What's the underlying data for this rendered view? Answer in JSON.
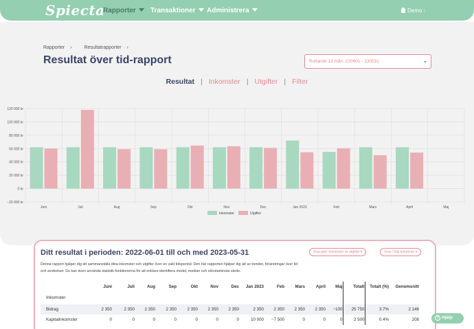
{
  "nav": {
    "logo": "Spiecta",
    "items": [
      {
        "label": "Rapporter",
        "active": true
      },
      {
        "label": "Transaktioner",
        "active": false
      },
      {
        "label": "Administrera",
        "active": false
      }
    ],
    "user": "Demo"
  },
  "breadcrumb": [
    "Rapporter",
    "Resultatrapporter"
  ],
  "page_title": "Resultat över tid-rapport",
  "period_select": "Rullande 12 mån: 220601 - 230531",
  "tabs": [
    {
      "label": "Resultat",
      "active": true
    },
    {
      "label": "Inkomster",
      "active": false
    },
    {
      "label": "Utgifter",
      "active": false
    },
    {
      "label": "Filter",
      "active": false
    }
  ],
  "colors": {
    "income": "#a8d8c0",
    "expense": "#e8b0b4",
    "accent": "#93cfb0",
    "pink": "#e08a94"
  },
  "chart_data": {
    "type": "bar",
    "categories": [
      "Juni",
      "Juli",
      "Aug",
      "Sep",
      "Okt",
      "Nov",
      "Dec",
      "Jan 2023",
      "Feb",
      "Mars",
      "April",
      "Maj"
    ],
    "series": [
      {
        "name": "Inkomster",
        "values": [
          62000,
          62000,
          62000,
          62000,
          62000,
          62000,
          62000,
          72000,
          55000,
          62000,
          62000,
          null
        ]
      },
      {
        "name": "Utgifter",
        "values": [
          60000,
          118000,
          59000,
          59000,
          64500,
          63500,
          61000,
          54500,
          60500,
          50000,
          54000,
          null
        ]
      }
    ],
    "ytick_labels": [
      "120 000 kr",
      "100 000 kr",
      "80 000 kr",
      "60 000 kr",
      "40 000 kr",
      "20 000 kr",
      "0 kr",
      "−20 000 kr"
    ],
    "ylim": [
      -20000,
      120000
    ],
    "grid": true,
    "legend_position": "bottom"
  },
  "card": {
    "title": "Ditt resultat i perioden: 2022-06-01 till och med 2023-05-31",
    "graph_select": "Visa graf: Inkomster vs utgifter",
    "columns_select": "Visa / Dölj kolumner",
    "description": "Denna rapport hjälper dig att sammanställa dina inkomster och utgifter över en vald tidsperiod. Den här rapporten hjälper dig att se trender, förändringar över tid och avvikelser. Du kan även använda statistik-funktionerna för att enklare identifiera medel, median och störstaminsta värde."
  },
  "table": {
    "headers": [
      "",
      "Juni",
      "Juli",
      "Aug",
      "Sep",
      "Okt",
      "Nov",
      "Dec",
      "Jan 2023",
      "Feb",
      "Mars",
      "April",
      "Maj",
      "Totalt",
      "Totalt (%)",
      "Genomsnitt"
    ],
    "section_label": "Inkomster",
    "rows": [
      {
        "label": "Bidrag",
        "cells": [
          "2 350",
          "2 350",
          "2 350",
          "2 350",
          "2 350",
          "2 350",
          "2 350",
          "2 350",
          "2 350",
          "2 350",
          "2 350",
          "−100",
          "25 750",
          "3.7%",
          "2 146"
        ]
      },
      {
        "label": "Kapitalinkomster",
        "cells": [
          "0",
          "0",
          "0",
          "0",
          "0",
          "0",
          "0",
          "10 000",
          "−7 500",
          "0",
          "0",
          "0",
          "2 500",
          "0.4%",
          "208"
        ]
      }
    ]
  },
  "help_label": "Hjälp"
}
